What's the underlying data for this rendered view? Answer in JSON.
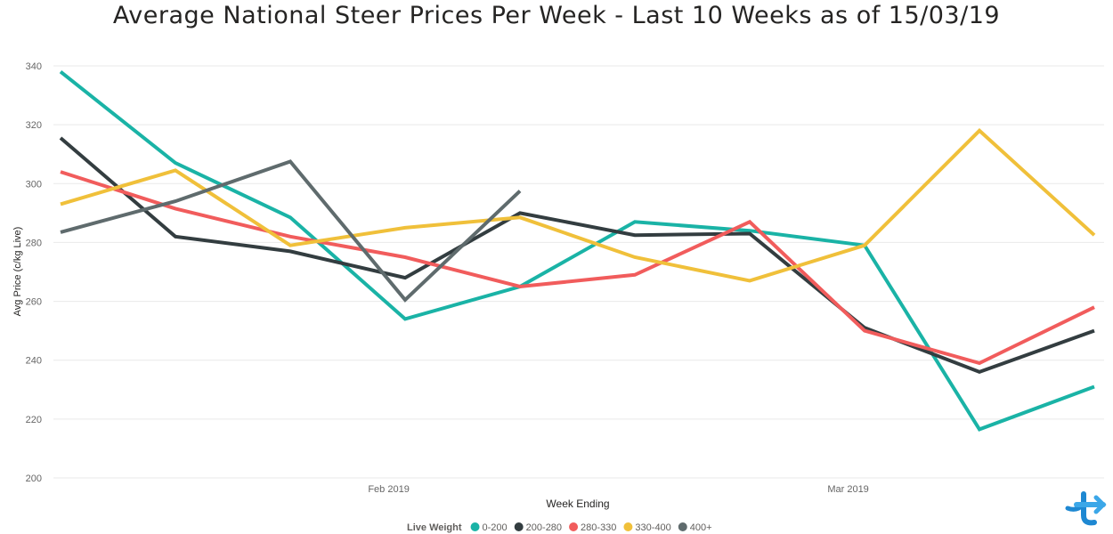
{
  "chart_data": {
    "type": "line",
    "title": "Average National Steer Prices Per Week - Last 10 Weeks as of 15/03/19",
    "xlabel": "Week Ending",
    "ylabel": "Avg Price (c/kg Live)",
    "ylim": [
      200,
      345
    ],
    "yticks": [
      200,
      220,
      240,
      260,
      280,
      300,
      320,
      340
    ],
    "x": [
      "2019-01-11",
      "2019-01-18",
      "2019-01-25",
      "2019-02-01",
      "2019-02-08",
      "2019-02-15",
      "2019-02-22",
      "2019-03-01",
      "2019-03-08",
      "2019-03-15"
    ],
    "xticks": [
      {
        "date": "2019-01-31",
        "label": "Feb 2019"
      },
      {
        "date": "2019-02-28",
        "label": "Mar 2019"
      }
    ],
    "grid": true,
    "legend": {
      "title": "Live Weight",
      "placement": "bottom"
    },
    "series": [
      {
        "name": "0-200",
        "color": "#1ab3a6",
        "values": [
          338,
          307,
          288.5,
          254,
          265,
          287,
          284,
          279,
          216.5,
          231
        ]
      },
      {
        "name": "200-280",
        "color": "#333d40",
        "values": [
          315.5,
          282,
          277,
          268,
          290,
          282.5,
          283,
          251,
          236,
          250
        ]
      },
      {
        "name": "280-330",
        "color": "#f15c5c",
        "values": [
          304,
          291.5,
          282,
          275,
          265,
          269,
          287,
          250,
          239,
          258
        ]
      },
      {
        "name": "330-400",
        "color": "#f0c03a",
        "values": [
          293,
          304.5,
          279,
          285,
          288.5,
          275,
          267,
          279,
          318,
          282.5
        ]
      },
      {
        "name": "400+",
        "color": "#5f6b6d",
        "values": [
          283.5,
          294,
          307.5,
          260.5,
          297.5,
          null,
          null,
          null,
          null,
          null
        ]
      }
    ]
  }
}
